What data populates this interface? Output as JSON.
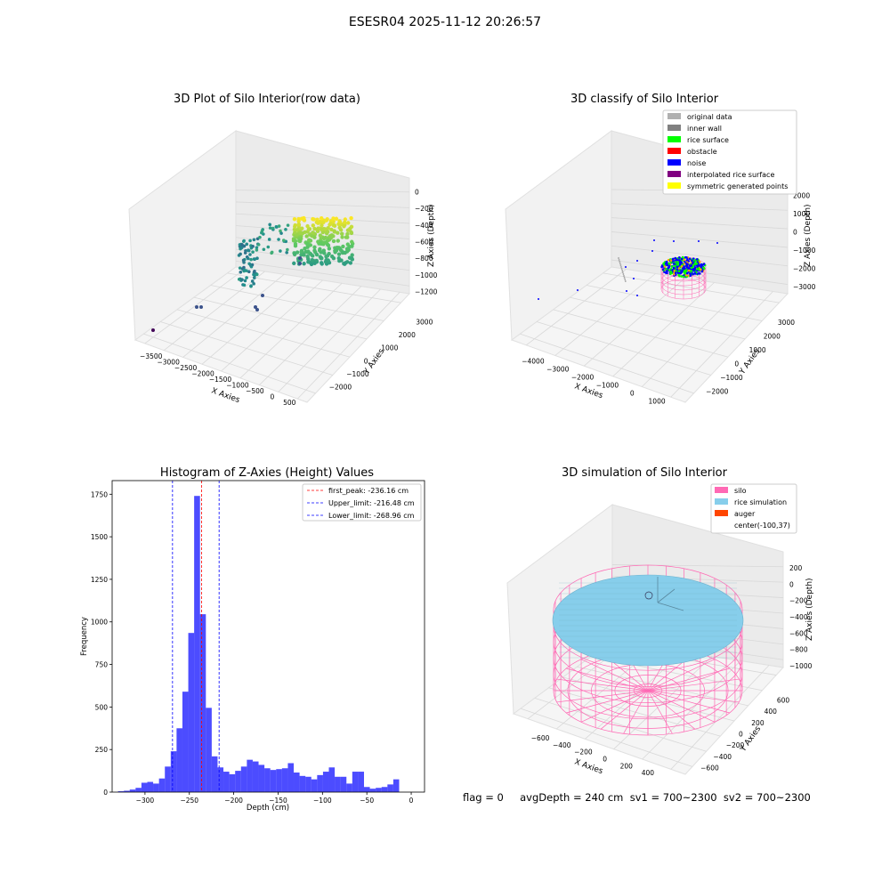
{
  "suptitle": "ESESR04 2025-11-12 20:26:57",
  "status_text": "flag = 0     avgDepth = 240 cm  sv1 = 700~2300  sv2 = 700~2300",
  "chart_data": [
    {
      "type": "scatter",
      "title": "3D Plot of Silo Interior(row data)",
      "xlabel": "X Axies",
      "ylabel": "Y Axies",
      "zlabel": "Z Axies (Depth)",
      "x_ticks": [
        "−3500",
        "−3000",
        "−2500",
        "−2000",
        "−1500",
        "−1000",
        "−500",
        "0",
        "500"
      ],
      "y_ticks": [
        "−2000",
        "−1000",
        "0",
        "1000",
        "2000",
        "3000"
      ],
      "z_ticks": [
        "0",
        "−200",
        "−400",
        "−600",
        "−800",
        "−1000",
        "−1200"
      ],
      "colormap": "viridis"
    },
    {
      "type": "scatter",
      "title": "3D classify of Silo Interior",
      "xlabel": "X Axies",
      "ylabel": "Y Axies",
      "zlabel": "Z Axies (Depth)",
      "x_ticks": [
        "−4000",
        "−3000",
        "−2000",
        "−1000",
        "0",
        "1000"
      ],
      "y_ticks": [
        "−2000",
        "−1000",
        "0",
        "1000",
        "2000",
        "3000"
      ],
      "z_ticks": [
        "2000",
        "1000",
        "0",
        "−1000",
        "−2000",
        "−3000"
      ],
      "legend": [
        {
          "label": "original data",
          "color": "#b0b0b0"
        },
        {
          "label": "inner wall",
          "color": "#808080"
        },
        {
          "label": "rice surface",
          "color": "#00ff00"
        },
        {
          "label": "obstacle",
          "color": "#ff0000"
        },
        {
          "label": "noise",
          "color": "#0000ff"
        },
        {
          "label": "interpolated rice surface",
          "color": "#800080"
        },
        {
          "label": "symmetric generated points",
          "color": "#ffff00"
        }
      ]
    },
    {
      "type": "bar",
      "title": "Histogram of Z-Axies (Height) Values",
      "xlabel": "Depth (cm)",
      "ylabel": "Frequency",
      "xlim": [
        -337,
        15
      ],
      "ylim": [
        0,
        1830
      ],
      "bar_color": "#0000ff",
      "x_ticks": [
        -300,
        -250,
        -200,
        -150,
        -100,
        -50,
        0
      ],
      "y_ticks": [
        0,
        250,
        500,
        750,
        1000,
        1250,
        1500,
        1750
      ],
      "bin_width": 6.6,
      "bin_starts": [
        -330.4,
        -323.8,
        -317.2,
        -310.6,
        -304.0,
        -297.4,
        -290.8,
        -284.2,
        -277.6,
        -271.0,
        -264.4,
        -257.8,
        -251.2,
        -244.6,
        -238.0,
        -231.4,
        -224.8,
        -218.2,
        -211.6,
        -205.0,
        -198.4,
        -191.8,
        -185.2,
        -178.6,
        -172.0,
        -165.4,
        -158.8,
        -152.2,
        -145.6,
        -139.0,
        -132.4,
        -125.8,
        -119.2,
        -112.6,
        -106.0,
        -99.4,
        -92.8,
        -86.2,
        -79.6,
        -73.0,
        -66.4,
        -59.8,
        -53.2,
        -46.6,
        -40.0,
        -33.4,
        -26.8,
        -20.2,
        -13.6,
        -7.0
      ],
      "values": [
        5,
        8,
        15,
        25,
        55,
        60,
        50,
        80,
        150,
        240,
        375,
        590,
        935,
        1740,
        1045,
        495,
        210,
        145,
        120,
        105,
        125,
        150,
        190,
        180,
        160,
        140,
        130,
        135,
        140,
        170,
        115,
        95,
        90,
        75,
        100,
        120,
        145,
        90,
        90,
        50,
        120,
        120,
        30,
        20,
        25,
        30,
        45,
        75,
        0,
        0
      ],
      "lines": [
        {
          "label": "first_peak: -236.16 cm",
          "value": -236.16,
          "color": "#ff0000"
        },
        {
          "label": "Upper_limit: -216.48 cm",
          "value": -216.48,
          "color": "#0000ff"
        },
        {
          "label": "Lower_limit: -268.96 cm",
          "value": -268.96,
          "color": "#0000ff"
        }
      ]
    },
    {
      "type": "scatter",
      "title": "3D simulation of Silo Interior",
      "xlabel": "X Axies",
      "ylabel": "Y Axies",
      "zlabel": "Z Axies (Depth)",
      "x_ticks": [
        "−600",
        "−400",
        "−200",
        "0",
        "200",
        "400"
      ],
      "y_ticks": [
        "−600",
        "−400",
        "−200",
        "0",
        "200",
        "400",
        "600"
      ],
      "z_ticks": [
        "200",
        "0",
        "−200",
        "−400",
        "−600",
        "−800",
        "−1000"
      ],
      "legend": [
        {
          "label": "silo",
          "color": "#ff69b4"
        },
        {
          "label": "rice simulation",
          "color": "#87ceeb"
        },
        {
          "label": "auger",
          "color": "#ff4500"
        },
        {
          "label": "center(-100,37)",
          "color": ""
        }
      ],
      "center": [
        -100,
        37
      ]
    }
  ]
}
